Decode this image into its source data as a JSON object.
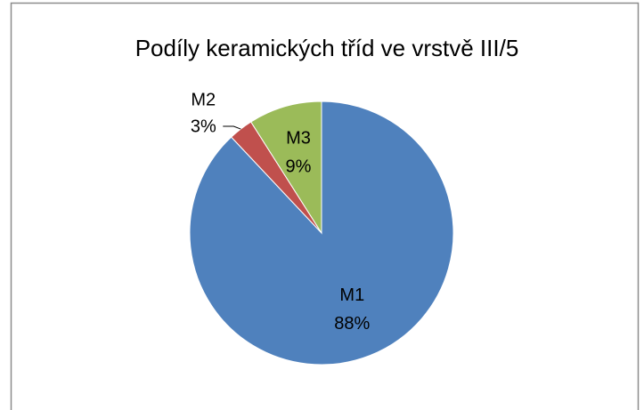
{
  "chart_data": {
    "type": "pie",
    "title": "Podíly keramických tříd ve vrstvě III/5",
    "categories": [
      "M1",
      "M2",
      "M3"
    ],
    "values": [
      88,
      3,
      9
    ],
    "value_labels": [
      "88%",
      "3%",
      "9%"
    ],
    "colors": [
      "#4f81bd",
      "#c0504d",
      "#9bbb59"
    ]
  }
}
